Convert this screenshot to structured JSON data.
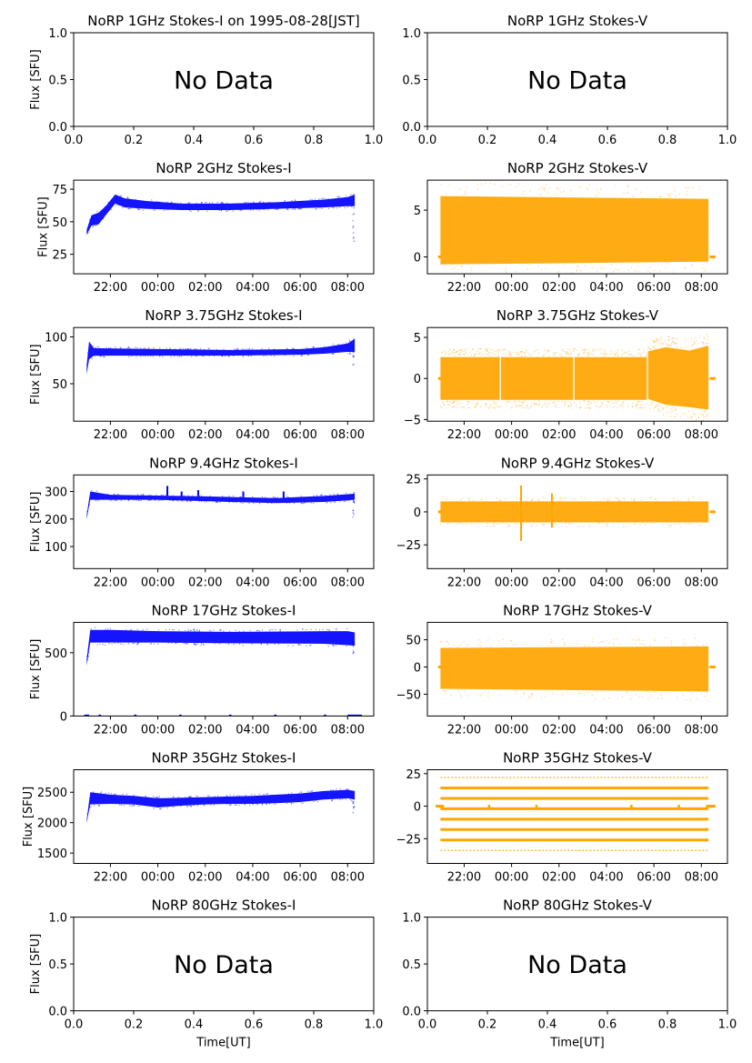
{
  "figure": {
    "x_axis_label": "Time[UT]",
    "y_axis_label": "Flux [SFU]",
    "no_data_text": "No Data"
  },
  "chart_data": [
    {
      "type": "scatter",
      "title": "NoRP 1GHz Stokes-I on 1995-08-28[JST]",
      "ylabel": "Flux [SFU]",
      "xlabel": "",
      "no_data": true,
      "xlim": [
        0,
        1
      ],
      "ylim": [
        0,
        1
      ],
      "xticks": [
        0,
        0.2,
        0.4,
        0.6,
        0.8,
        1
      ],
      "xtick_labels": [
        "0.0",
        "0.2",
        "0.4",
        "0.6",
        "0.8",
        "1.0"
      ],
      "yticks": [
        0,
        0.5,
        1
      ],
      "ytick_labels": [
        "0.0",
        "0.5",
        "1.0"
      ]
    },
    {
      "type": "scatter",
      "title": "NoRP 1GHz Stokes-V",
      "ylabel": "",
      "xlabel": "",
      "no_data": true,
      "xlim": [
        0,
        1
      ],
      "ylim": [
        0,
        1
      ],
      "xticks": [
        0,
        0.2,
        0.4,
        0.6,
        0.8,
        1
      ],
      "xtick_labels": [
        "0.0",
        "0.2",
        "0.4",
        "0.6",
        "0.8",
        "1.0"
      ],
      "yticks": [
        0,
        0.5,
        1
      ],
      "ytick_labels": [
        "0.0",
        "0.5",
        "1.0"
      ]
    },
    {
      "type": "scatter",
      "title": "NoRP 2GHz Stokes-I",
      "ylabel": "Flux [SFU]",
      "xlabel": "",
      "no_data": false,
      "color": "#0000ff",
      "x_unit": "hours since 21:00 UT",
      "xlim": [
        -0.55,
        12.1
      ],
      "ylim": [
        10,
        82
      ],
      "xticks": [
        1,
        3,
        5,
        7,
        9,
        11
      ],
      "xtick_labels": [
        "22:00",
        "00:00",
        "02:00",
        "04:00",
        "06:00",
        "08:00"
      ],
      "yticks": [
        25,
        50,
        75
      ],
      "ytick_labels": [
        "25",
        "50",
        "75"
      ],
      "series": [
        {
          "kind": "band",
          "x": [
            0,
            0.2,
            0.5,
            0.8,
            1.2,
            1.6,
            2.5,
            4,
            6,
            8,
            10,
            11,
            11.3
          ],
          "lo": [
            40,
            47,
            48,
            55,
            64,
            61,
            60,
            59,
            59,
            60,
            61,
            62,
            62
          ],
          "hi": [
            44,
            55,
            57,
            62,
            71,
            68,
            66,
            64,
            64,
            65,
            67,
            69,
            71
          ]
        }
      ],
      "outliers": [
        {
          "x": 11.25,
          "lo": 35,
          "hi": 62
        }
      ]
    },
    {
      "type": "scatter",
      "title": "NoRP 2GHz Stokes-V",
      "ylabel": "",
      "xlabel": "",
      "no_data": false,
      "color": "#ffa500",
      "x_unit": "hours since 21:00 UT",
      "xlim": [
        -0.55,
        12.1
      ],
      "ylim": [
        -1.8,
        8.2
      ],
      "xticks": [
        1,
        3,
        5,
        7,
        9,
        11
      ],
      "xtick_labels": [
        "22:00",
        "00:00",
        "02:00",
        "04:00",
        "06:00",
        "08:00"
      ],
      "yticks": [
        0,
        5
      ],
      "ytick_labels": [
        "0",
        "5"
      ],
      "series": [
        {
          "kind": "band",
          "x": [
            0,
            11.3
          ],
          "lo": [
            -0.8,
            -0.5
          ],
          "hi": [
            6.5,
            6.2
          ]
        }
      ],
      "baseline": {
        "y": 0,
        "segments": [
          [
            -0.1,
            0.05
          ],
          [
            11.35,
            11.6
          ]
        ]
      }
    },
    {
      "type": "scatter",
      "title": "NoRP 3.75GHz Stokes-I",
      "ylabel": "Flux [SFU]",
      "xlabel": "",
      "no_data": false,
      "color": "#0000ff",
      "x_unit": "hours since 21:00 UT",
      "xlim": [
        -0.55,
        12.1
      ],
      "ylim": [
        10,
        110
      ],
      "xticks": [
        1,
        3,
        5,
        7,
        9,
        11
      ],
      "xtick_labels": [
        "22:00",
        "00:00",
        "02:00",
        "04:00",
        "06:00",
        "08:00"
      ],
      "yticks": [
        50,
        100
      ],
      "ytick_labels": [
        "50",
        "100"
      ],
      "series": [
        {
          "kind": "band",
          "x": [
            0,
            0.1,
            0.3,
            3,
            6,
            9,
            10,
            11,
            11.3
          ],
          "lo": [
            60,
            76,
            80,
            80,
            80,
            81,
            82,
            84,
            84
          ],
          "hi": [
            70,
            95,
            88,
            87,
            86,
            87,
            89,
            93,
            98
          ]
        }
      ],
      "outliers": [
        {
          "x": 11.25,
          "lo": 70,
          "hi": 90
        }
      ]
    },
    {
      "type": "scatter",
      "title": "NoRP 3.75GHz Stokes-V",
      "ylabel": "",
      "xlabel": "",
      "no_data": false,
      "color": "#ffa500",
      "x_unit": "hours since 21:00 UT",
      "xlim": [
        -0.55,
        12.1
      ],
      "ylim": [
        -5.2,
        6.2
      ],
      "xticks": [
        1,
        3,
        5,
        7,
        9,
        11
      ],
      "xtick_labels": [
        "22:00",
        "00:00",
        "02:00",
        "04:00",
        "06:00",
        "08:00"
      ],
      "yticks": [
        -5,
        0,
        5
      ],
      "ytick_labels": [
        "−5",
        "0",
        "5"
      ],
      "series": [
        {
          "kind": "band",
          "x": [
            0,
            2.5
          ],
          "lo": [
            -2.6,
            -2.6
          ],
          "hi": [
            2.6,
            2.6
          ]
        },
        {
          "kind": "band",
          "x": [
            2.55,
            5.6
          ],
          "lo": [
            -2.6,
            -2.6
          ],
          "hi": [
            2.6,
            2.6
          ]
        },
        {
          "kind": "band",
          "x": [
            5.65,
            8.7
          ],
          "lo": [
            -2.6,
            -2.6
          ],
          "hi": [
            2.6,
            2.6
          ]
        },
        {
          "kind": "band",
          "x": [
            8.75,
            9.5,
            10.5,
            11.3
          ],
          "lo": [
            -2.5,
            -3.2,
            -3.5,
            -3.8
          ],
          "hi": [
            3.3,
            3.8,
            3.4,
            4.0
          ]
        }
      ],
      "baseline": {
        "y": 0,
        "segments": [
          [
            -0.1,
            0.05
          ],
          [
            11.35,
            11.6
          ]
        ]
      }
    },
    {
      "type": "scatter",
      "title": "NoRP 9.4GHz Stokes-I",
      "ylabel": "Flux [SFU]",
      "xlabel": "",
      "no_data": false,
      "color": "#0000ff",
      "x_unit": "hours since 21:00 UT",
      "xlim": [
        -0.55,
        12.1
      ],
      "ylim": [
        20,
        360
      ],
      "xticks": [
        1,
        3,
        5,
        7,
        9,
        11
      ],
      "xtick_labels": [
        "22:00",
        "00:00",
        "02:00",
        "04:00",
        "06:00",
        "08:00"
      ],
      "yticks": [
        100,
        200,
        300
      ],
      "ytick_labels": [
        "100",
        "200",
        "300"
      ],
      "series": [
        {
          "kind": "band",
          "x": [
            0,
            0.15,
            1,
            3,
            5,
            6,
            7,
            8,
            9,
            10,
            11,
            11.3
          ],
          "lo": [
            200,
            270,
            270,
            270,
            265,
            262,
            260,
            258,
            260,
            262,
            268,
            270
          ],
          "hi": [
            215,
            300,
            288,
            285,
            282,
            280,
            278,
            276,
            280,
            284,
            290,
            292
          ]
        }
      ],
      "bursts": [
        {
          "x": 3.4,
          "top": 320
        },
        {
          "x": 4.0,
          "top": 300
        },
        {
          "x": 4.7,
          "top": 305
        },
        {
          "x": 6.6,
          "top": 300
        },
        {
          "x": 8.3,
          "top": 300
        }
      ],
      "outliers": [
        {
          "x": 11.25,
          "lo": 200,
          "hi": 270
        }
      ]
    },
    {
      "type": "scatter",
      "title": "NoRP 9.4GHz Stokes-V",
      "ylabel": "",
      "xlabel": "",
      "no_data": false,
      "color": "#ffa500",
      "x_unit": "hours since 21:00 UT",
      "xlim": [
        -0.55,
        12.1
      ],
      "ylim": [
        -43,
        28
      ],
      "xticks": [
        1,
        3,
        5,
        7,
        9,
        11
      ],
      "xtick_labels": [
        "22:00",
        "00:00",
        "02:00",
        "04:00",
        "06:00",
        "08:00"
      ],
      "yticks": [
        -25,
        0,
        25
      ],
      "ytick_labels": [
        "−25",
        "0",
        "25"
      ],
      "series": [
        {
          "kind": "band",
          "x": [
            0,
            11.3
          ],
          "lo": [
            -8,
            -8
          ],
          "hi": [
            8,
            8
          ]
        }
      ],
      "bursts": [
        {
          "x": 3.4,
          "top": 20,
          "bottom": -22
        },
        {
          "x": 4.7,
          "top": 14,
          "bottom": -12
        }
      ],
      "baseline": {
        "y": 0,
        "segments": [
          [
            -0.1,
            0.05
          ],
          [
            11.35,
            11.6
          ]
        ]
      }
    },
    {
      "type": "scatter",
      "title": "NoRP 17GHz Stokes-I",
      "ylabel": "Flux [SFU]",
      "xlabel": "",
      "no_data": false,
      "color": "#0000ff",
      "x_unit": "hours since 21:00 UT",
      "xlim": [
        -0.55,
        12.1
      ],
      "ylim": [
        0,
        740
      ],
      "xticks": [
        1,
        3,
        5,
        7,
        9,
        11
      ],
      "xtick_labels": [
        "22:00",
        "00:00",
        "02:00",
        "04:00",
        "06:00",
        "08:00"
      ],
      "yticks": [
        0,
        500
      ],
      "ytick_labels": [
        "0",
        "500"
      ],
      "series": [
        {
          "kind": "band",
          "x": [
            0,
            0.15,
            1,
            3,
            6,
            9,
            10,
            11,
            11.3
          ],
          "lo": [
            400,
            580,
            580,
            580,
            575,
            572,
            570,
            560,
            555
          ],
          "hi": [
            450,
            680,
            680,
            670,
            665,
            668,
            670,
            670,
            660
          ]
        }
      ],
      "outliers": [
        {
          "x": 11.25,
          "lo": 480,
          "hi": 590
        }
      ],
      "baseline": {
        "y": 0,
        "segments": [
          [
            -0.1,
            0.1
          ],
          [
            0.5,
            0.6
          ],
          [
            2.0,
            2.1
          ],
          [
            3.9,
            4.0
          ],
          [
            6.0,
            6.1
          ],
          [
            7.9,
            8.0
          ],
          [
            10.0,
            10.1
          ],
          [
            11.0,
            11.6
          ]
        ]
      }
    },
    {
      "type": "scatter",
      "title": "NoRP 17GHz Stokes-V",
      "ylabel": "",
      "xlabel": "",
      "no_data": false,
      "color": "#ffa500",
      "x_unit": "hours since 21:00 UT",
      "xlim": [
        -0.55,
        12.1
      ],
      "ylim": [
        -90,
        82
      ],
      "xticks": [
        1,
        3,
        5,
        7,
        9,
        11
      ],
      "xtick_labels": [
        "22:00",
        "00:00",
        "02:00",
        "04:00",
        "06:00",
        "08:00"
      ],
      "yticks": [
        -50,
        0,
        50
      ],
      "ytick_labels": [
        "−50",
        "0",
        "50"
      ],
      "series": [
        {
          "kind": "band",
          "x": [
            0,
            11.3
          ],
          "lo": [
            -40,
            -45
          ],
          "hi": [
            35,
            38
          ]
        }
      ],
      "baseline": {
        "y": 0,
        "segments": [
          [
            -0.1,
            0.05
          ],
          [
            11.35,
            11.6
          ]
        ]
      }
    },
    {
      "type": "scatter",
      "title": "NoRP 35GHz Stokes-I",
      "ylabel": "Flux [SFU]",
      "xlabel": "",
      "no_data": false,
      "color": "#0000ff",
      "x_unit": "hours since 21:00 UT",
      "xlim": [
        -0.55,
        12.1
      ],
      "ylim": [
        1330,
        2870
      ],
      "xticks": [
        1,
        3,
        5,
        7,
        9,
        11
      ],
      "xtick_labels": [
        "22:00",
        "00:00",
        "02:00",
        "04:00",
        "06:00",
        "08:00"
      ],
      "yticks": [
        1500,
        2000,
        2500
      ],
      "ytick_labels": [
        "1500",
        "2000",
        "2500"
      ],
      "series": [
        {
          "kind": "band",
          "x": [
            0,
            0.15,
            1,
            2,
            3,
            4,
            5,
            6,
            7,
            8,
            9,
            10,
            11,
            11.3
          ],
          "lo": [
            2000,
            2300,
            2310,
            2300,
            2250,
            2280,
            2300,
            2310,
            2310,
            2320,
            2340,
            2380,
            2400,
            2380
          ],
          "hi": [
            2050,
            2500,
            2460,
            2440,
            2400,
            2410,
            2420,
            2430,
            2440,
            2460,
            2480,
            2520,
            2540,
            2520
          ]
        }
      ],
      "outliers": [
        {
          "x": 11.25,
          "lo": 2150,
          "hi": 2400
        }
      ]
    },
    {
      "type": "scatter",
      "title": "NoRP 35GHz Stokes-V",
      "ylabel": "",
      "xlabel": "",
      "no_data": false,
      "color": "#ffa500",
      "x_unit": "hours since 21:00 UT",
      "xlim": [
        -0.55,
        12.1
      ],
      "ylim": [
        -44,
        28
      ],
      "xticks": [
        1,
        3,
        5,
        7,
        9,
        11
      ],
      "xtick_labels": [
        "22:00",
        "00:00",
        "02:00",
        "04:00",
        "06:00",
        "08:00"
      ],
      "yticks": [
        -25,
        0,
        25
      ],
      "ytick_labels": [
        "−25",
        "0",
        "25"
      ],
      "levels": [
        {
          "y": 22,
          "thin": true
        },
        {
          "y": 14
        },
        {
          "y": 6
        },
        {
          "y": -2
        },
        {
          "y": -10
        },
        {
          "y": -18
        },
        {
          "y": -26
        },
        {
          "y": -34,
          "thin": true
        }
      ],
      "level_x": [
        0,
        11.3
      ],
      "baseline": {
        "y": 0,
        "segments": [
          [
            -0.2,
            0.15
          ],
          [
            2.0,
            2.1
          ],
          [
            4.0,
            4.1
          ],
          [
            8.0,
            8.1
          ],
          [
            10.0,
            10.1
          ],
          [
            11.2,
            11.6
          ]
        ]
      }
    },
    {
      "type": "scatter",
      "title": "NoRP 80GHz Stokes-I",
      "ylabel": "Flux [SFU]",
      "xlabel": "Time[UT]",
      "no_data": true,
      "xlim": [
        0,
        1
      ],
      "ylim": [
        0,
        1
      ],
      "xticks": [
        0,
        0.2,
        0.4,
        0.6,
        0.8,
        1
      ],
      "xtick_labels": [
        "0.0",
        "0.2",
        "0.4",
        "0.6",
        "0.8",
        "1.0"
      ],
      "yticks": [
        0,
        0.5,
        1
      ],
      "ytick_labels": [
        "0.0",
        "0.5",
        "1.0"
      ]
    },
    {
      "type": "scatter",
      "title": "NoRP 80GHz Stokes-V",
      "ylabel": "",
      "xlabel": "Time[UT]",
      "no_data": true,
      "xlim": [
        0,
        1
      ],
      "ylim": [
        0,
        1
      ],
      "xticks": [
        0,
        0.2,
        0.4,
        0.6,
        0.8,
        1
      ],
      "xtick_labels": [
        "0.0",
        "0.2",
        "0.4",
        "0.6",
        "0.8",
        "1.0"
      ],
      "yticks": [
        0,
        0.5,
        1
      ],
      "ytick_labels": [
        "0.0",
        "0.5",
        "1.0"
      ]
    }
  ]
}
